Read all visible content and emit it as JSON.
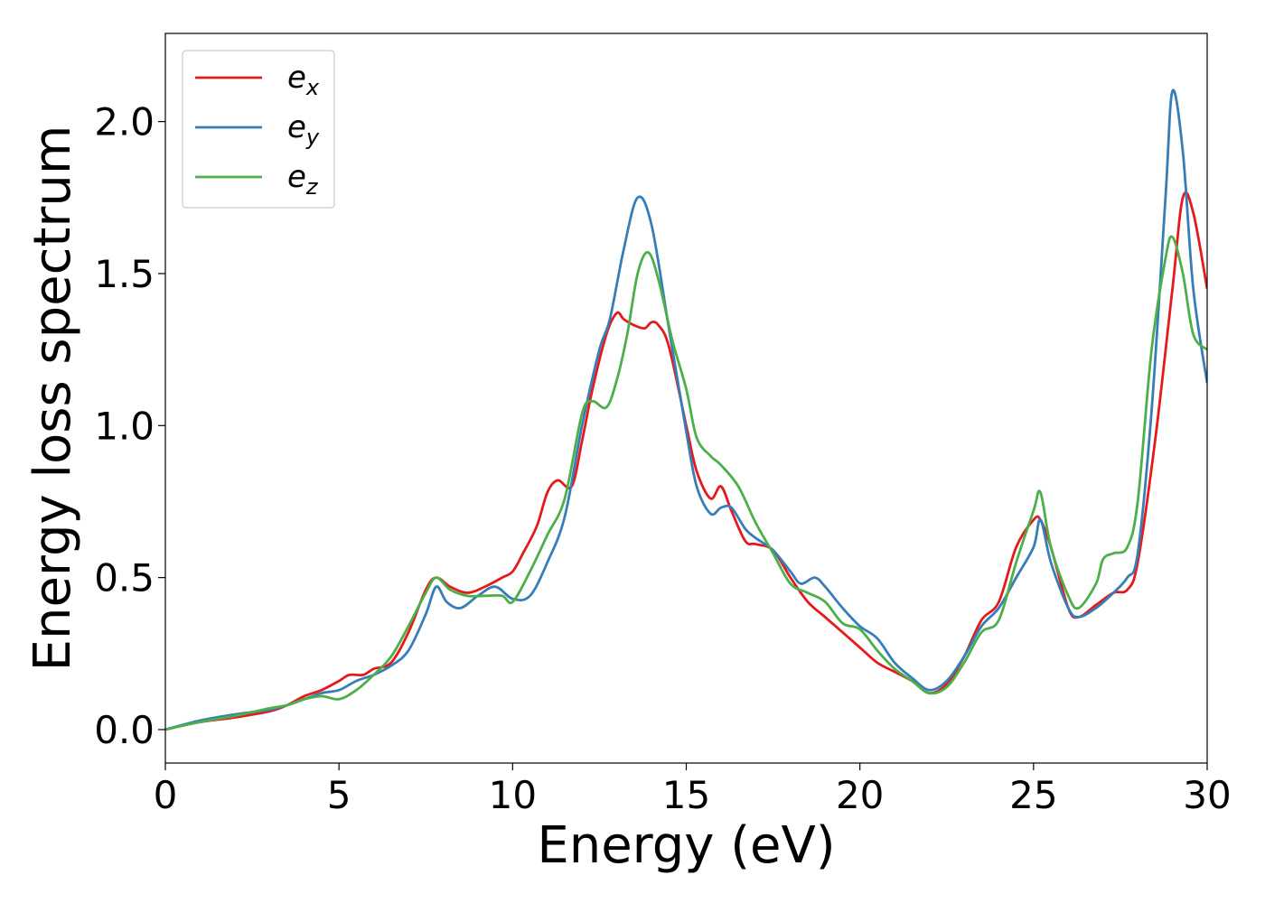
{
  "chart_data": {
    "type": "line",
    "title": "",
    "xlabel": "Energy (eV)",
    "ylabel": "Energy loss spectrum",
    "xlim": [
      0,
      30
    ],
    "ylim": [
      -0.11,
      2.29
    ],
    "xticks": [
      0,
      5,
      10,
      15,
      20,
      25,
      30
    ],
    "xtick_labels": [
      "0",
      "5",
      "10",
      "15",
      "20",
      "25",
      "30"
    ],
    "yticks": [
      0.0,
      0.5,
      1.0,
      1.5,
      2.0
    ],
    "ytick_labels": [
      "0.0",
      "0.5",
      "1.0",
      "1.5",
      "2.0"
    ],
    "grid": false,
    "legend_position": "top-left",
    "series": [
      {
        "name": "e_x",
        "legend_base": "e",
        "legend_sub": "x",
        "color": "#e41a1c",
        "x": [
          0,
          1,
          2,
          3,
          3.5,
          4,
          4.5,
          5,
          5.3,
          5.7,
          6,
          6.5,
          7,
          7.5,
          7.8,
          8.2,
          8.7,
          9.2,
          9.7,
          10,
          10.3,
          10.7,
          11,
          11.3,
          11.7,
          12,
          12.3,
          12.7,
          13,
          13.2,
          13.5,
          13.8,
          14,
          14.2,
          14.5,
          15,
          15.3,
          15.7,
          16,
          16.3,
          16.7,
          17,
          17.5,
          18,
          18.5,
          19,
          19.5,
          20,
          20.5,
          21,
          21.5,
          22,
          22.5,
          23,
          23.5,
          24,
          24.5,
          25,
          25.2,
          25.5,
          26,
          26.3,
          26.8,
          27.3,
          27.7,
          28,
          28.5,
          29,
          29.3,
          29.6,
          30
        ],
        "y": [
          0.0,
          0.025,
          0.04,
          0.06,
          0.08,
          0.11,
          0.13,
          0.16,
          0.18,
          0.18,
          0.2,
          0.22,
          0.32,
          0.46,
          0.5,
          0.47,
          0.45,
          0.47,
          0.5,
          0.52,
          0.58,
          0.67,
          0.78,
          0.82,
          0.8,
          0.95,
          1.12,
          1.3,
          1.37,
          1.35,
          1.33,
          1.32,
          1.34,
          1.33,
          1.26,
          1.0,
          0.85,
          0.76,
          0.8,
          0.72,
          0.62,
          0.61,
          0.59,
          0.5,
          0.42,
          0.37,
          0.32,
          0.27,
          0.22,
          0.19,
          0.16,
          0.12,
          0.15,
          0.24,
          0.36,
          0.42,
          0.6,
          0.69,
          0.69,
          0.6,
          0.4,
          0.37,
          0.41,
          0.45,
          0.46,
          0.55,
          0.95,
          1.45,
          1.75,
          1.7,
          1.45
        ]
      },
      {
        "name": "e_y",
        "legend_base": "e",
        "legend_sub": "y",
        "color": "#377eb8",
        "x": [
          0,
          1,
          2,
          3,
          3.5,
          4,
          4.5,
          5,
          5.5,
          6,
          6.5,
          7,
          7.5,
          7.8,
          8.1,
          8.5,
          9,
          9.5,
          10,
          10.5,
          11,
          11.5,
          12,
          12.5,
          12.8,
          13.2,
          13.6,
          14,
          14.5,
          15,
          15.3,
          15.7,
          16,
          16.3,
          16.7,
          17,
          17.5,
          18,
          18.3,
          18.7,
          19,
          19.5,
          20,
          20.5,
          21,
          21.5,
          22,
          22.5,
          23,
          23.5,
          24,
          24.5,
          25,
          25.2,
          25.5,
          26,
          26.3,
          26.8,
          27.3,
          27.7,
          28,
          28.4,
          28.8,
          29,
          29.3,
          29.6,
          30
        ],
        "y": [
          0.0,
          0.03,
          0.05,
          0.065,
          0.08,
          0.1,
          0.12,
          0.13,
          0.16,
          0.18,
          0.21,
          0.26,
          0.38,
          0.47,
          0.42,
          0.4,
          0.44,
          0.47,
          0.43,
          0.44,
          0.55,
          0.7,
          1.0,
          1.25,
          1.35,
          1.58,
          1.75,
          1.66,
          1.32,
          0.98,
          0.8,
          0.71,
          0.73,
          0.73,
          0.66,
          0.63,
          0.59,
          0.52,
          0.48,
          0.5,
          0.47,
          0.4,
          0.34,
          0.3,
          0.22,
          0.17,
          0.13,
          0.16,
          0.24,
          0.34,
          0.4,
          0.5,
          0.6,
          0.69,
          0.55,
          0.4,
          0.37,
          0.4,
          0.45,
          0.5,
          0.58,
          1.05,
          1.75,
          2.1,
          1.9,
          1.45,
          1.14
        ]
      },
      {
        "name": "e_z",
        "legend_base": "e",
        "legend_sub": "z",
        "color": "#4daf4a",
        "x": [
          0,
          1,
          2,
          3,
          3.5,
          4,
          4.5,
          5,
          5.5,
          6,
          6.5,
          7,
          7.5,
          7.8,
          8.2,
          8.7,
          9.2,
          9.7,
          10,
          10.5,
          11,
          11.5,
          12,
          12.3,
          12.7,
          13,
          13.3,
          13.6,
          13.9,
          14.2,
          14.6,
          15,
          15.3,
          15.7,
          16,
          16.5,
          17,
          17.5,
          18,
          18.5,
          19,
          19.5,
          20,
          20.5,
          21,
          21.5,
          22,
          22.5,
          23,
          23.5,
          24,
          24.5,
          25,
          25.2,
          25.5,
          26,
          26.3,
          26.8,
          27,
          27.3,
          27.7,
          28,
          28.4,
          28.8,
          29,
          29.3,
          29.6,
          30
        ],
        "y": [
          0.0,
          0.025,
          0.045,
          0.07,
          0.08,
          0.1,
          0.11,
          0.1,
          0.13,
          0.18,
          0.24,
          0.34,
          0.45,
          0.5,
          0.46,
          0.44,
          0.44,
          0.44,
          0.42,
          0.52,
          0.64,
          0.76,
          1.04,
          1.08,
          1.06,
          1.15,
          1.3,
          1.5,
          1.57,
          1.48,
          1.28,
          1.12,
          0.96,
          0.9,
          0.87,
          0.8,
          0.68,
          0.58,
          0.48,
          0.45,
          0.42,
          0.35,
          0.33,
          0.26,
          0.2,
          0.16,
          0.12,
          0.14,
          0.22,
          0.32,
          0.36,
          0.55,
          0.72,
          0.78,
          0.6,
          0.44,
          0.4,
          0.48,
          0.56,
          0.58,
          0.6,
          0.75,
          1.25,
          1.55,
          1.62,
          1.5,
          1.3,
          1.25
        ]
      }
    ]
  }
}
